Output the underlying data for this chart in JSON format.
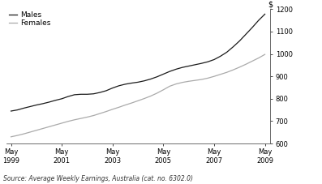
{
  "males_x": [
    1999.38,
    1999.63,
    1999.88,
    2000.13,
    2000.38,
    2000.63,
    2000.88,
    2001.13,
    2001.38,
    2001.63,
    2001.88,
    2002.13,
    2002.38,
    2002.63,
    2002.88,
    2003.13,
    2003.38,
    2003.63,
    2003.88,
    2004.13,
    2004.38,
    2004.63,
    2004.88,
    2005.13,
    2005.38,
    2005.63,
    2005.88,
    2006.13,
    2006.38,
    2006.63,
    2006.88,
    2007.13,
    2007.38,
    2007.63,
    2007.88,
    2008.13,
    2008.38,
    2008.63,
    2008.88,
    2009.13,
    2009.38
  ],
  "males_y": [
    745,
    750,
    758,
    765,
    772,
    778,
    785,
    793,
    800,
    810,
    818,
    820,
    820,
    822,
    828,
    836,
    848,
    858,
    865,
    870,
    874,
    880,
    888,
    898,
    910,
    922,
    932,
    940,
    946,
    952,
    958,
    965,
    975,
    990,
    1008,
    1032,
    1058,
    1088,
    1118,
    1150,
    1178
  ],
  "females_x": [
    1999.38,
    1999.63,
    1999.88,
    2000.13,
    2000.38,
    2000.63,
    2000.88,
    2001.13,
    2001.38,
    2001.63,
    2001.88,
    2002.13,
    2002.38,
    2002.63,
    2002.88,
    2003.13,
    2003.38,
    2003.63,
    2003.88,
    2004.13,
    2004.38,
    2004.63,
    2004.88,
    2005.13,
    2005.38,
    2005.63,
    2005.88,
    2006.13,
    2006.38,
    2006.63,
    2006.88,
    2007.13,
    2007.38,
    2007.63,
    2007.88,
    2008.13,
    2008.38,
    2008.63,
    2008.88,
    2009.13,
    2009.38
  ],
  "females_y": [
    630,
    636,
    643,
    651,
    659,
    667,
    675,
    683,
    691,
    699,
    706,
    712,
    718,
    725,
    734,
    743,
    753,
    762,
    772,
    781,
    791,
    801,
    812,
    825,
    840,
    856,
    866,
    873,
    878,
    882,
    886,
    892,
    900,
    909,
    918,
    929,
    941,
    954,
    968,
    982,
    998
  ],
  "males_color": "#1a1a1a",
  "females_color": "#aaaaaa",
  "males_label": "Males",
  "females_label": "Females",
  "xlim": [
    1999.2,
    2009.6
  ],
  "ylim": [
    600,
    1200
  ],
  "xticks": [
    1999.38,
    2001.38,
    2003.38,
    2005.38,
    2007.38,
    2009.38
  ],
  "xticklabels": [
    "May\n1999",
    "May\n2001",
    "May\n2003",
    "May\n2005",
    "May\n2007",
    "May\n2009"
  ],
  "yticks": [
    600,
    700,
    800,
    900,
    1000,
    1100,
    1200
  ],
  "yticklabels": [
    "600",
    "700",
    "800",
    "900",
    "1000",
    "1100",
    "1200"
  ],
  "ylabel_dollar": "$",
  "source_text": "Source: Average Weekly Earnings, Australia (cat. no. 6302.0)",
  "line_width": 0.9,
  "background_color": "#ffffff",
  "spine_color": "#555555",
  "tick_fontsize": 6.0,
  "legend_fontsize": 6.5,
  "source_fontsize": 5.5
}
